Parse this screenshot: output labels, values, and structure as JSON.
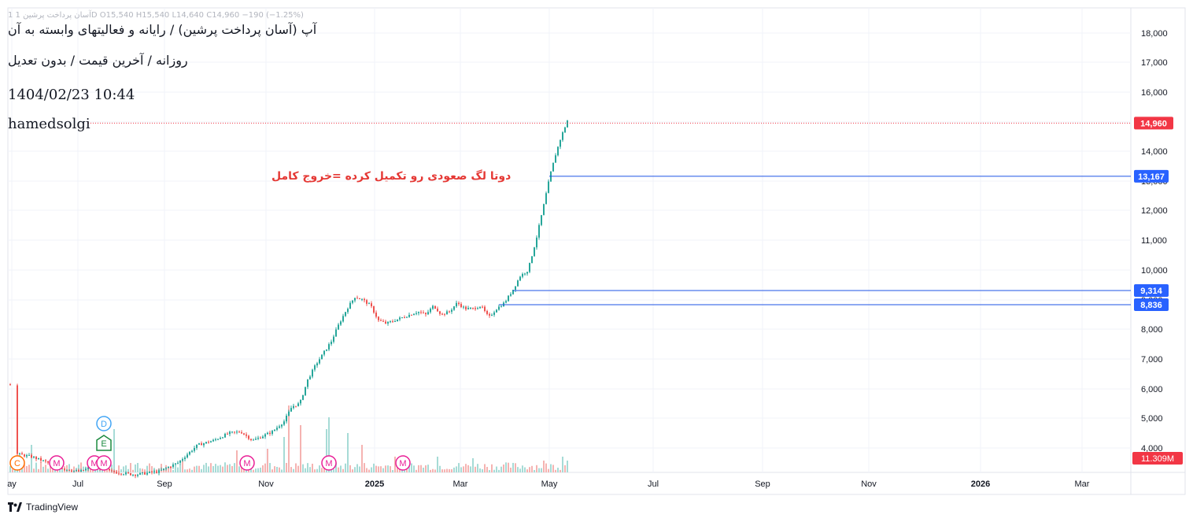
{
  "header": {
    "ohlc_text": "1  آسان پرداخت پرشین  1D  O15,540  H15,540  L14,640  C14,960  −190 (−1.25%)",
    "title": "آپ (آسان پرداخت پرشین) / رایانه و فعالیتهای وابسته به آن",
    "subtitle": "روزانه / آخرین قیمت / بدون تعدیل",
    "datetime": "1404/02/23 10:44",
    "author": "hamedsolgi"
  },
  "annotation": "دوتا لگ صعودی رو تکمیل کرده =خروج کامل",
  "branding": {
    "logo_text": "TradingView"
  },
  "colors": {
    "up": "#26a69a",
    "down": "#ef5350",
    "level_line": "#1e53e5",
    "price_label": "#f23645",
    "level_label": "#2962ff",
    "marker_m": "#e91e96",
    "marker_c": "#ff6d00",
    "marker_d": "#42a5f5",
    "marker_e": "#1b8a3f"
  },
  "chart_data": {
    "type": "candlestick",
    "price_axis": {
      "ticks": [
        "4,000",
        "5,000",
        "6,000",
        "7,000",
        "8,000",
        "9,000",
        "10,000",
        "11,000",
        "12,000",
        "13,000",
        "14,000",
        "15,000",
        "16,000",
        "17,000",
        "18,000"
      ],
      "ylim": [
        3600,
        18400
      ]
    },
    "time_axis": {
      "ticks": [
        "ay",
        "Jul",
        "Sep",
        "Nov",
        "2025",
        "Mar",
        "May",
        "Jul",
        "Sep",
        "Nov",
        "2026",
        "Mar"
      ]
    },
    "last_price": {
      "value": 14960,
      "label": "14,960"
    },
    "levels": [
      {
        "value": 13167,
        "label": "13,167"
      },
      {
        "value": 9314,
        "label": "9,314"
      },
      {
        "value": 8836,
        "label": "8,836"
      }
    ],
    "volume_label": "11.309M",
    "price_path": [
      [
        0,
        6400
      ],
      [
        7,
        6250
      ],
      [
        12,
        6150
      ],
      [
        20,
        3800
      ],
      [
        40,
        3700
      ],
      [
        60,
        3500
      ],
      [
        80,
        3300
      ],
      [
        100,
        3200
      ],
      [
        120,
        3400
      ],
      [
        140,
        3200
      ],
      [
        170,
        3100
      ],
      [
        200,
        3200
      ],
      [
        225,
        3500
      ],
      [
        250,
        4100
      ],
      [
        270,
        4250
      ],
      [
        290,
        4500
      ],
      [
        305,
        4550
      ],
      [
        320,
        4250
      ],
      [
        345,
        4550
      ],
      [
        360,
        4900
      ],
      [
        370,
        5400
      ],
      [
        380,
        5500
      ],
      [
        390,
        6300
      ],
      [
        400,
        6800
      ],
      [
        410,
        7200
      ],
      [
        420,
        7600
      ],
      [
        430,
        8200
      ],
      [
        440,
        8700
      ],
      [
        450,
        9100
      ],
      [
        460,
        9000
      ],
      [
        470,
        8800
      ],
      [
        480,
        8300
      ],
      [
        490,
        8200
      ],
      [
        500,
        8300
      ],
      [
        510,
        8400
      ],
      [
        520,
        8500
      ],
      [
        530,
        8600
      ],
      [
        540,
        8500
      ],
      [
        550,
        8800
      ],
      [
        560,
        8500
      ],
      [
        570,
        8600
      ],
      [
        580,
        8900
      ],
      [
        590,
        8700
      ],
      [
        600,
        8700
      ],
      [
        610,
        8800
      ],
      [
        620,
        8400
      ],
      [
        630,
        8700
      ],
      [
        640,
        8900
      ],
      [
        650,
        9300
      ],
      [
        660,
        9800
      ],
      [
        670,
        10000
      ],
      [
        680,
        11000
      ],
      [
        690,
        12200
      ],
      [
        698,
        13200
      ],
      [
        705,
        13900
      ],
      [
        712,
        14500
      ],
      [
        718,
        14900
      ],
      [
        722,
        15200
      ]
    ],
    "volume_bars": [
      [
        40,
        35
      ],
      [
        145,
        55
      ],
      [
        175,
        12
      ],
      [
        230,
        15
      ],
      [
        300,
        28
      ],
      [
        340,
        30
      ],
      [
        360,
        45
      ],
      [
        366,
        85
      ],
      [
        380,
        60
      ],
      [
        415,
        55
      ],
      [
        418,
        70
      ],
      [
        440,
        50
      ],
      [
        460,
        35
      ],
      [
        500,
        20
      ],
      [
        555,
        20
      ],
      [
        600,
        18
      ],
      [
        640,
        10
      ],
      [
        690,
        15
      ],
      [
        715,
        20
      ],
      [
        720,
        15
      ]
    ],
    "event_markers": [
      {
        "type": "C",
        "x": 22
      },
      {
        "type": "M",
        "x": 72
      },
      {
        "type": "M",
        "x": 120
      },
      {
        "type": "M",
        "x": 132
      },
      {
        "type": "D",
        "x": 132
      },
      {
        "type": "E",
        "x": 132
      },
      {
        "type": "M",
        "x": 314
      },
      {
        "type": "M",
        "x": 418
      },
      {
        "type": "M",
        "x": 512
      }
    ]
  }
}
